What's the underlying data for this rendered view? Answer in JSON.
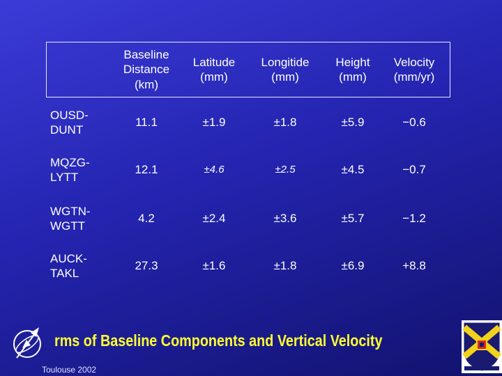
{
  "table": {
    "headers": [
      "Baseline\nDistance\n(km)",
      "Latitude\n(mm)",
      "Longitide\n(mm)",
      "Height\n(mm)",
      "Velocity\n(mm/yr)"
    ],
    "rows": [
      {
        "label": "OUSD-\nDUNT",
        "cells": [
          "11.1",
          "±1.9",
          "±1.8",
          "±5.9",
          "−0.6"
        ]
      },
      {
        "label": "MQZG-\nLYTT",
        "cells": [
          "12.1",
          "±4.6",
          "±2.5",
          "±4.5",
          "−0.7"
        ]
      },
      {
        "label": "WGTN-\nWGTT",
        "cells": [
          "4.2",
          "±2.4",
          "±3.6",
          "±5.7",
          "−1.2"
        ]
      },
      {
        "label": "AUCK-\nTAKL",
        "cells": [
          "27.3",
          "±1.6",
          "±1.8",
          "±6.9",
          "+8.8"
        ]
      }
    ]
  },
  "slide": {
    "title": "rms  of Baseline Components and Vertical Velocity",
    "footer": "Toulouse 2002"
  },
  "colors": {
    "title": "#ffff33",
    "grid": "#e8e8ff",
    "background": "#2424b0"
  },
  "icons": {
    "left": "compass-globe-icon",
    "right": "university-crest-icon"
  }
}
